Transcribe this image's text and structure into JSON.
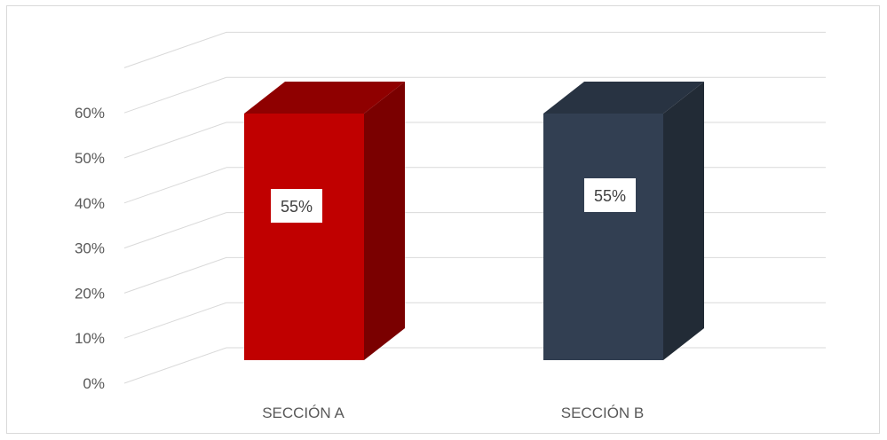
{
  "chart_data": {
    "type": "bar",
    "style": "3d-column",
    "categories": [
      "SECCIÓN A",
      "SECCIÓN B"
    ],
    "values": [
      55,
      55
    ],
    "data_labels": [
      "55%",
      "55%"
    ],
    "ylim": [
      0,
      60
    ],
    "y_ticks": [
      0,
      10,
      20,
      30,
      40,
      50,
      60
    ],
    "y_tick_labels": [
      "0%",
      "10%",
      "20%",
      "30%",
      "40%",
      "50%",
      "60%"
    ],
    "gridlines": true,
    "legend": "none",
    "colors": {
      "bars": [
        {
          "front": "#c00000",
          "side": "#7a0000",
          "top": "#8f0000"
        },
        {
          "front": "#323f52",
          "side": "#222b36",
          "top": "#283342"
        }
      ],
      "grid": "#d9d9d9",
      "tick_text": "#595959",
      "label_box": "#ffffff",
      "label_text": "#404040"
    }
  }
}
